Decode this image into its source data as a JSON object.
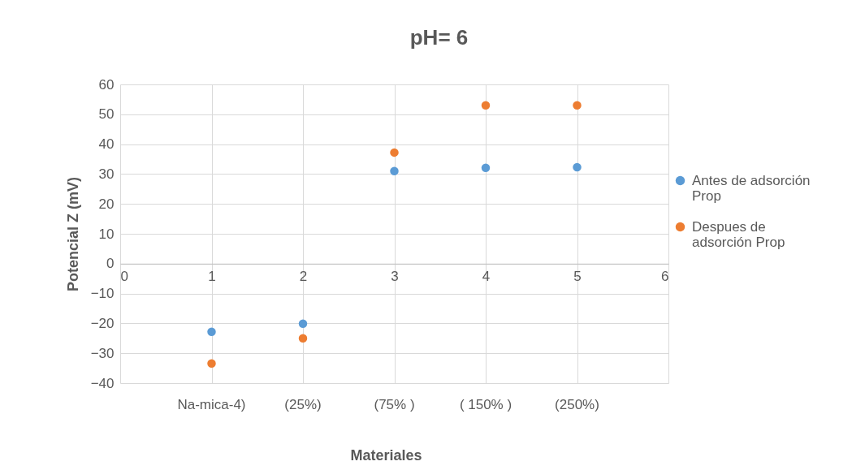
{
  "chart_data": {
    "type": "scatter",
    "title": "pH= 6",
    "xlabel": "Materiales",
    "ylabel": "Potencial Z (mV)",
    "x": [
      1,
      2,
      3,
      4,
      5
    ],
    "series": [
      {
        "name": "Antes de adsorción Prop",
        "color": "#5b9bd5",
        "values": [
          -22.8,
          -20.1,
          31,
          32.1,
          32.3
        ]
      },
      {
        "name": "Despues de adsorción Prop",
        "color": "#ed7d31",
        "values": [
          -33.4,
          -25,
          37.2,
          53,
          53
        ]
      }
    ],
    "xlim": [
      0,
      6
    ],
    "xticks": [
      0,
      1,
      2,
      3,
      4,
      5,
      6
    ],
    "ylim": [
      -40,
      60
    ],
    "yticks": [
      -40,
      -30,
      -20,
      -10,
      0,
      10,
      20,
      30,
      40,
      50,
      60
    ],
    "grid": true,
    "legend": "right",
    "marker": "circle",
    "annotations": [
      "Na-mica-4)",
      "(25%)",
      "(75% )",
      "( 150% )",
      "(250%)"
    ]
  }
}
